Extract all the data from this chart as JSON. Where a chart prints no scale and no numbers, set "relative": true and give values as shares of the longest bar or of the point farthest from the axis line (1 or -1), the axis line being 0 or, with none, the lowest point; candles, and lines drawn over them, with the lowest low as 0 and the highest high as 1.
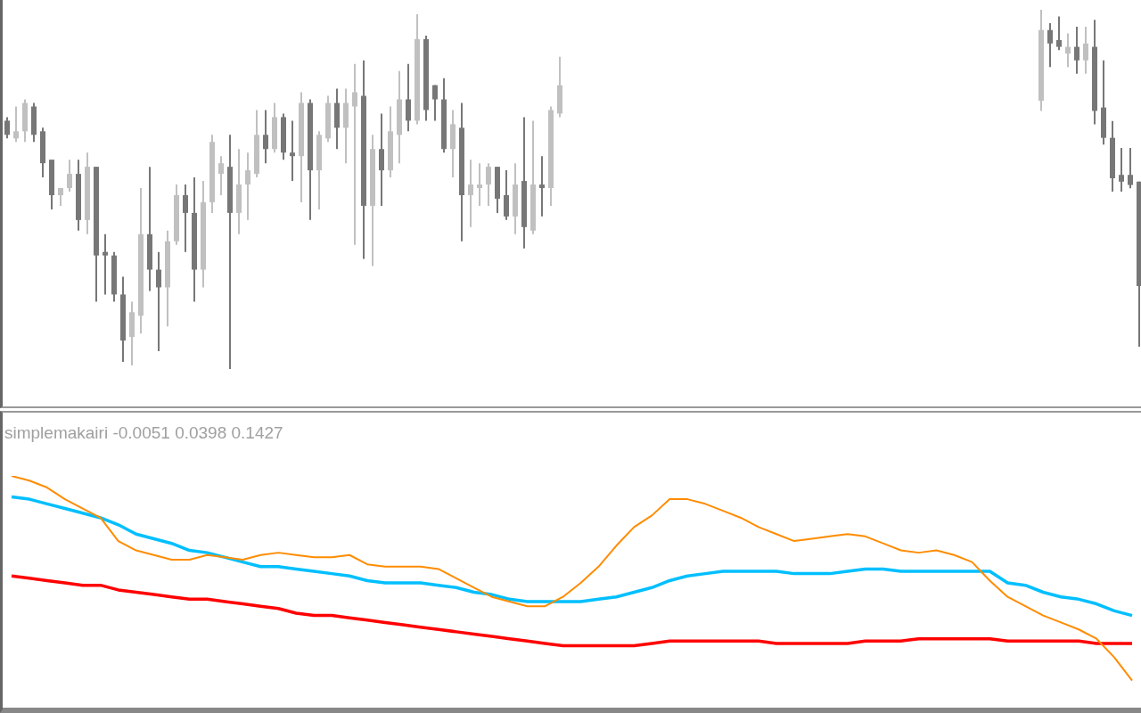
{
  "chart_data": [
    {
      "type": "candlestick",
      "relative": true,
      "categories": [
        null,
        null,
        null,
        null,
        null,
        null,
        null,
        null,
        null,
        null,
        null,
        null,
        null,
        null,
        null,
        null,
        null,
        null,
        null,
        null,
        null,
        null,
        null,
        null,
        null,
        null,
        null,
        null,
        null,
        null,
        null,
        null,
        null,
        null,
        null,
        null,
        null,
        null,
        null,
        null,
        null,
        null,
        null,
        null,
        null,
        null,
        null,
        null,
        null,
        null,
        null,
        null,
        null,
        null,
        null,
        null,
        null,
        null,
        null,
        null,
        null,
        null,
        null
      ],
      "ohlc": [
        [
          0.7,
          0.71,
          0.65,
          0.66
        ],
        [
          0.65,
          0.74,
          0.64,
          0.67
        ],
        [
          0.67,
          0.76,
          0.64,
          0.75
        ],
        [
          0.74,
          0.75,
          0.64,
          0.66
        ],
        [
          0.67,
          0.68,
          0.54,
          0.58
        ],
        [
          0.59,
          0.59,
          0.45,
          0.49
        ],
        [
          0.49,
          0.51,
          0.46,
          0.51
        ],
        [
          0.51,
          0.59,
          0.5,
          0.55
        ],
        [
          0.55,
          0.59,
          0.39,
          0.42
        ],
        [
          0.42,
          0.61,
          0.38,
          0.57
        ],
        [
          0.57,
          0.57,
          0.19,
          0.32
        ],
        [
          0.33,
          0.38,
          0.21,
          0.32
        ],
        [
          0.32,
          0.33,
          0.19,
          0.21
        ],
        [
          0.21,
          0.26,
          0.02,
          0.08
        ],
        [
          0.09,
          0.19,
          0.01,
          0.16
        ],
        [
          0.15,
          0.51,
          0.1,
          0.38
        ],
        [
          0.38,
          0.57,
          0.22,
          0.28
        ],
        [
          0.28,
          0.33,
          0.05,
          0.23
        ],
        [
          0.23,
          0.39,
          0.12,
          0.36
        ],
        [
          0.36,
          0.52,
          0.35,
          0.49
        ],
        [
          0.49,
          0.52,
          0.33,
          0.44
        ],
        [
          0.44,
          0.54,
          0.19,
          0.28
        ],
        [
          0.28,
          0.53,
          0.23,
          0.47
        ],
        [
          0.47,
          0.66,
          0.44,
          0.64
        ],
        [
          0.55,
          0.6,
          0.49,
          0.58
        ],
        [
          0.57,
          0.66,
          0,
          0.44
        ],
        [
          0.44,
          0.62,
          0.38,
          0.52
        ],
        [
          0.52,
          0.61,
          0.42,
          0.56
        ],
        [
          0.55,
          0.73,
          0.54,
          0.66
        ],
        [
          0.66,
          0.73,
          0.58,
          0.62
        ],
        [
          0.62,
          0.75,
          0.61,
          0.71
        ],
        [
          0.71,
          0.72,
          0.59,
          0.61
        ],
        [
          0.61,
          0.7,
          0.53,
          0.6
        ],
        [
          0.6,
          0.78,
          0.47,
          0.75
        ],
        [
          0.75,
          0.76,
          0.42,
          0.56
        ],
        [
          0.56,
          0.67,
          0.45,
          0.66
        ],
        [
          0.65,
          0.77,
          0.64,
          0.75
        ],
        [
          0.75,
          0.79,
          0.62,
          0.68
        ],
        [
          0.68,
          0.79,
          0.58,
          0.75
        ],
        [
          0.74,
          0.86,
          0.35,
          0.78
        ],
        [
          0.77,
          0.87,
          0.31,
          0.46
        ],
        [
          0.46,
          0.66,
          0.29,
          0.62
        ],
        [
          0.62,
          0.72,
          0.46,
          0.56
        ],
        [
          0.56,
          0.74,
          0.54,
          0.67
        ],
        [
          0.66,
          0.84,
          0.58,
          0.76
        ],
        [
          0.76,
          0.86,
          0.67,
          0.7
        ],
        [
          0.7,
          1,
          0.69,
          0.93
        ],
        [
          0.93,
          0.94,
          0.7,
          0.73
        ],
        [
          0.8,
          0.8,
          0.7,
          0.76
        ],
        [
          0.76,
          0.82,
          0.61,
          0.62
        ],
        [
          0.62,
          0.73,
          0.54,
          0.69
        ],
        [
          0.68,
          0.75,
          0.36,
          0.49
        ],
        [
          0.49,
          0.59,
          0.4,
          0.52
        ],
        [
          0.51,
          0.58,
          0.46,
          0.52
        ],
        [
          0.52,
          0.58,
          0.46,
          0.57
        ],
        [
          0.57,
          0.57,
          0.44,
          0.48
        ],
        [
          0.49,
          0.56,
          0.42,
          0.43
        ],
        [
          0.43,
          0.58,
          0.38,
          0.52
        ],
        [
          0.53,
          0.71,
          0.34,
          0.4
        ],
        [
          0.39,
          0.7,
          0.38,
          0.52
        ],
        [
          0.52,
          0.6,
          0.43,
          0.51
        ],
        [
          0.51,
          0.74,
          0.46,
          0.73
        ],
        [
          0.72,
          0.88,
          0.71,
          0.8
        ]
      ],
      "colors": [
        "#777777",
        "#c0c0c0",
        "#c0c0c0",
        "#777777",
        "#777777",
        "#777777",
        "#c0c0c0",
        "#c0c0c0",
        "#777777",
        "#c0c0c0",
        "#777777",
        "#777777",
        "#777777",
        "#777777",
        "#c0c0c0",
        "#c0c0c0",
        "#777777",
        "#777777",
        "#c0c0c0",
        "#c0c0c0",
        "#777777",
        "#777777",
        "#c0c0c0",
        "#c0c0c0",
        "#c0c0c0",
        "#777777",
        "#c0c0c0",
        "#c0c0c0",
        "#c0c0c0",
        "#777777",
        "#c0c0c0",
        "#777777",
        "#777777",
        "#c0c0c0",
        "#777777",
        "#c0c0c0",
        "#c0c0c0",
        "#777777",
        "#c0c0c0",
        "#c0c0c0",
        "#777777",
        "#c0c0c0",
        "#777777",
        "#c0c0c0",
        "#c0c0c0",
        "#777777",
        "#c0c0c0",
        "#777777",
        "#777777",
        "#777777",
        "#c0c0c0",
        "#777777",
        "#c0c0c0",
        "#c0c0c0",
        "#c0c0c0",
        "#777777",
        "#777777",
        "#c0c0c0",
        "#777777",
        "#c0c0c0",
        "#777777",
        "#c0c0c0",
        "#c0c0c0"
      ]
    },
    {
      "type": "candlestick",
      "relative": true,
      "categories": [
        null,
        null,
        null,
        null,
        null,
        null,
        null,
        null,
        null,
        null,
        null,
        null
      ],
      "ohlc": [
        [
          0.73,
          1,
          0.7,
          0.94
        ],
        [
          0.94,
          0.96,
          0.83,
          0.9
        ],
        [
          0.91,
          0.98,
          0.88,
          0.89
        ],
        [
          0.87,
          0.93,
          0.83,
          0.89
        ],
        [
          0.89,
          0.95,
          0.81,
          0.85
        ],
        [
          0.85,
          0.95,
          0.81,
          0.9
        ],
        [
          0.89,
          0.97,
          0.66,
          0.7
        ],
        [
          0.71,
          0.85,
          0.6,
          0.62
        ],
        [
          0.62,
          0.67,
          0.46,
          0.5
        ],
        [
          0.51,
          0.59,
          0.46,
          0.49
        ],
        [
          0.51,
          0.59,
          0.47,
          0.48
        ],
        [
          0.49,
          0.49,
          0,
          0.18
        ]
      ],
      "colors": [
        "#c0c0c0",
        "#777777",
        "#777777",
        "#c0c0c0",
        "#777777",
        "#c0c0c0",
        "#777777",
        "#777777",
        "#777777",
        "#777777",
        "#777777",
        "#777777"
      ]
    },
    {
      "type": "line",
      "relative": true,
      "title": "simplemakairi -0.0051 0.0398 0.1427",
      "categories": [
        null,
        null,
        null,
        null,
        null,
        null,
        null,
        null,
        null,
        null,
        null,
        null,
        null,
        null,
        null,
        null,
        null,
        null,
        null,
        null,
        null,
        null,
        null,
        null,
        null,
        null,
        null,
        null,
        null,
        null,
        null,
        null,
        null,
        null,
        null,
        null,
        null,
        null,
        null,
        null,
        null,
        null,
        null,
        null,
        null,
        null,
        null,
        null,
        null,
        null,
        null,
        null,
        null,
        null,
        null,
        null,
        null,
        null,
        null,
        null,
        null,
        null,
        null,
        null
      ],
      "series": [
        {
          "color": "#ff8c00",
          "values": [
            1.0,
            0.98,
            0.95,
            0.9,
            0.86,
            0.82,
            0.72,
            0.68,
            0.66,
            0.64,
            0.64,
            0.66,
            0.65,
            0.64,
            0.66,
            0.67,
            0.66,
            0.65,
            0.65,
            0.66,
            0.62,
            0.61,
            0.61,
            0.61,
            0.6,
            0.56,
            0.52,
            0.48,
            0.46,
            0.44,
            0.44,
            0.48,
            0.54,
            0.61,
            0.7,
            0.78,
            0.83,
            0.9,
            0.9,
            0.88,
            0.85,
            0.82,
            0.78,
            0.75,
            0.72,
            0.73,
            0.74,
            0.75,
            0.74,
            0.71,
            0.68,
            0.67,
            0.68,
            0.66,
            0.63,
            0.55,
            0.48,
            0.44,
            0.4,
            0.37,
            0.34,
            0.3,
            0.22,
            0.12
          ]
        },
        {
          "color": "#00bfff",
          "values": [
            0.91,
            0.9,
            0.88,
            0.86,
            0.84,
            0.82,
            0.79,
            0.75,
            0.73,
            0.71,
            0.68,
            0.67,
            0.65,
            0.63,
            0.61,
            0.61,
            0.6,
            0.59,
            0.58,
            0.57,
            0.55,
            0.54,
            0.54,
            0.54,
            0.53,
            0.52,
            0.5,
            0.49,
            0.47,
            0.46,
            0.46,
            0.46,
            0.46,
            0.47,
            0.48,
            0.5,
            0.52,
            0.55,
            0.57,
            0.58,
            0.59,
            0.59,
            0.59,
            0.59,
            0.58,
            0.58,
            0.58,
            0.59,
            0.6,
            0.6,
            0.59,
            0.59,
            0.59,
            0.59,
            0.59,
            0.59,
            0.54,
            0.53,
            0.5,
            0.48,
            0.47,
            0.45,
            0.42,
            0.4
          ]
        },
        {
          "color": "#ff0000",
          "values": [
            0.57,
            0.56,
            0.55,
            0.54,
            0.53,
            0.53,
            0.51,
            0.5,
            0.49,
            0.48,
            0.47,
            0.47,
            0.46,
            0.45,
            0.44,
            0.43,
            0.41,
            0.4,
            0.4,
            0.39,
            0.38,
            0.37,
            0.36,
            0.35,
            0.34,
            0.33,
            0.32,
            0.31,
            0.3,
            0.29,
            0.28,
            0.27,
            0.27,
            0.27,
            0.27,
            0.27,
            0.28,
            0.29,
            0.29,
            0.29,
            0.29,
            0.29,
            0.29,
            0.28,
            0.28,
            0.28,
            0.28,
            0.28,
            0.29,
            0.29,
            0.29,
            0.3,
            0.3,
            0.3,
            0.3,
            0.3,
            0.29,
            0.29,
            0.29,
            0.29,
            0.29,
            0.28,
            0.28,
            0.28
          ]
        }
      ]
    }
  ]
}
